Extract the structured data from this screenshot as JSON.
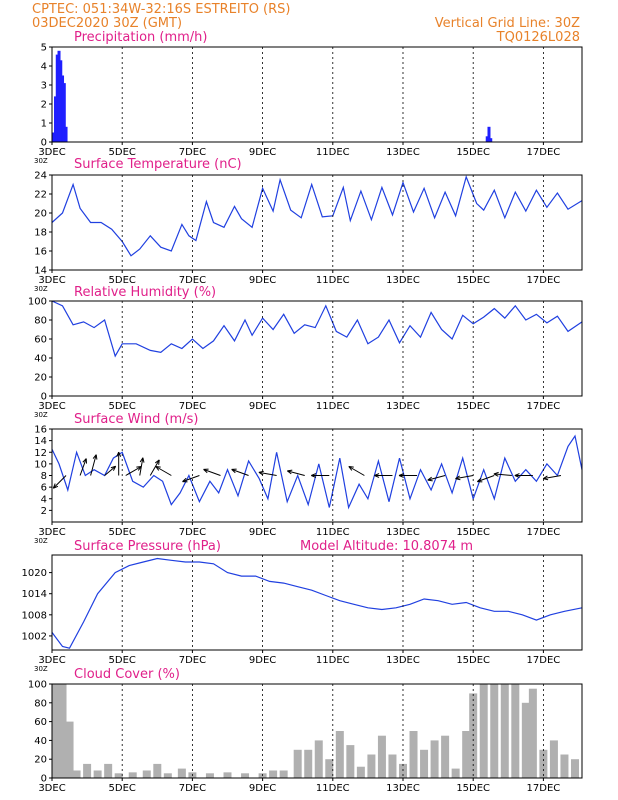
{
  "header": {
    "location": "CPTEC:   051:34W-32:16S   ESTREITO (RS)",
    "run": "03DEC2020 30Z (GMT)",
    "grid_line": "Vertical Grid Line: 30Z",
    "code": "TQ0126L028"
  },
  "chart_data": [
    {
      "type": "bar",
      "title": "Precipitation (mm/h)",
      "x_tick_labels": [
        "3DEC",
        "5DEC",
        "7DEC",
        "9DEC",
        "11DEC",
        "13DEC",
        "15DEC",
        "17DEC"
      ],
      "xlim_days": [
        3,
        18.1
      ],
      "ylim": [
        0,
        5
      ],
      "yticks": [
        0,
        1,
        2,
        3,
        4,
        5
      ],
      "color": "#1f1fff",
      "values": [
        [
          3.05,
          0.5
        ],
        [
          3.1,
          2.4
        ],
        [
          3.15,
          4.6
        ],
        [
          3.2,
          4.8
        ],
        [
          3.25,
          4.3
        ],
        [
          3.3,
          3.5
        ],
        [
          3.35,
          3.1
        ],
        [
          3.4,
          0.8
        ],
        [
          15.4,
          0.3
        ],
        [
          15.45,
          0.8
        ],
        [
          15.5,
          0.2
        ]
      ]
    },
    {
      "type": "line",
      "title": "Surface Temperature (nC)",
      "x_tick_labels": [
        "3DEC",
        "5DEC",
        "7DEC",
        "9DEC",
        "11DEC",
        "13DEC",
        "15DEC",
        "17DEC"
      ],
      "xlim_days": [
        3,
        18.1
      ],
      "ylim": [
        14,
        24
      ],
      "yticks": [
        14,
        16,
        18,
        20,
        22,
        24
      ],
      "color": "#2040e0",
      "x": [
        3,
        3.3,
        3.6,
        3.8,
        4.1,
        4.4,
        4.7,
        5,
        5.25,
        5.5,
        5.8,
        6.1,
        6.4,
        6.7,
        6.9,
        7.1,
        7.4,
        7.6,
        7.9,
        8.2,
        8.4,
        8.7,
        9,
        9.3,
        9.5,
        9.8,
        10.1,
        10.4,
        10.7,
        11,
        11.3,
        11.5,
        11.8,
        12.1,
        12.4,
        12.7,
        13,
        13.3,
        13.6,
        13.9,
        14.2,
        14.5,
        14.8,
        15.1,
        15.3,
        15.6,
        15.9,
        16.2,
        16.5,
        16.8,
        17.1,
        17.4,
        17.7,
        18.1
      ],
      "values": [
        19,
        20,
        23,
        20.5,
        19,
        19,
        18.3,
        17,
        15.5,
        16.2,
        17.6,
        16.4,
        16,
        18.8,
        17.6,
        17.1,
        21.2,
        19,
        18.5,
        20.7,
        19.4,
        18.5,
        22.6,
        20.2,
        23.5,
        20.3,
        19.5,
        23,
        19.6,
        19.7,
        22.7,
        19.2,
        22.3,
        19.3,
        22.7,
        19.8,
        23.2,
        20.1,
        22.6,
        19.5,
        22.2,
        19.7,
        23.8,
        21,
        20.3,
        22.4,
        19.5,
        22.2,
        20.2,
        22.4,
        20.6,
        22.1,
        20.4,
        21.3
      ]
    },
    {
      "type": "line",
      "title": "Relative Humidity (%)",
      "x_tick_labels": [
        "3DEC",
        "5DEC",
        "7DEC",
        "9DEC",
        "11DEC",
        "13DEC",
        "15DEC",
        "17DEC"
      ],
      "xlim_days": [
        3,
        18.1
      ],
      "ylim": [
        0,
        100
      ],
      "yticks": [
        0,
        20,
        40,
        60,
        80,
        100
      ],
      "color": "#2040e0",
      "x": [
        3,
        3.3,
        3.6,
        3.9,
        4.2,
        4.5,
        4.8,
        5,
        5.4,
        5.8,
        6.1,
        6.4,
        6.7,
        7,
        7.3,
        7.6,
        7.9,
        8.2,
        8.5,
        8.7,
        9,
        9.3,
        9.6,
        9.9,
        10.2,
        10.5,
        10.8,
        11.1,
        11.4,
        11.7,
        12,
        12.3,
        12.6,
        12.9,
        13.2,
        13.5,
        13.8,
        14.1,
        14.4,
        14.7,
        15,
        15.3,
        15.6,
        15.9,
        16.2,
        16.5,
        16.8,
        17.1,
        17.4,
        17.7,
        18.1
      ],
      "values": [
        100,
        95,
        75,
        78,
        72,
        80,
        42,
        55,
        55,
        48,
        46,
        55,
        50,
        60,
        50,
        58,
        74,
        58,
        80,
        64,
        82,
        70,
        86,
        66,
        75,
        72,
        95,
        68,
        62,
        80,
        55,
        62,
        80,
        56,
        74,
        62,
        88,
        70,
        60,
        85,
        76,
        83,
        92,
        82,
        95,
        80,
        86,
        77,
        84,
        68,
        78
      ]
    },
    {
      "type": "line",
      "title": "Surface Wind (m/s)",
      "x_tick_labels": [
        "3DEC",
        "5DEC",
        "7DEC",
        "9DEC",
        "11DEC",
        "13DEC",
        "15DEC",
        "17DEC"
      ],
      "xlim_days": [
        3,
        18.1
      ],
      "ylim": [
        0,
        16
      ],
      "yticks": [
        2,
        4,
        6,
        8,
        10,
        12,
        14,
        16
      ],
      "color": "#2040e0",
      "x": [
        3,
        3.2,
        3.45,
        3.7,
        3.95,
        4.2,
        4.5,
        4.75,
        5,
        5.3,
        5.6,
        5.9,
        6.15,
        6.4,
        6.65,
        6.9,
        7.2,
        7.5,
        7.75,
        8,
        8.3,
        8.6,
        8.9,
        9.15,
        9.4,
        9.7,
        10,
        10.3,
        10.6,
        10.9,
        11.2,
        11.45,
        11.75,
        12,
        12.3,
        12.6,
        12.9,
        13.2,
        13.5,
        13.8,
        14.1,
        14.4,
        14.7,
        15,
        15.3,
        15.6,
        15.9,
        16.2,
        16.5,
        16.8,
        17.1,
        17.4,
        17.7,
        17.9,
        18.1
      ],
      "values": [
        12.5,
        10,
        5.5,
        12,
        8,
        9,
        8,
        11,
        12,
        7,
        6,
        8,
        7,
        3,
        5,
        8,
        3.5,
        7,
        5,
        9,
        4.5,
        10.5,
        7.5,
        4,
        12,
        3.5,
        8,
        3,
        10,
        2.5,
        11,
        2.5,
        6.5,
        4,
        10.5,
        3.5,
        11,
        4,
        9,
        5.5,
        10,
        5,
        11,
        4,
        9,
        4,
        11,
        7,
        9,
        7,
        10,
        8,
        13,
        14.8,
        9
      ]
    },
    {
      "type": "line",
      "title": "Surface Pressure (hPa)",
      "annotation": "Model Altitude: 10.8074 m",
      "x_tick_labels": [
        "3DEC",
        "5DEC",
        "7DEC",
        "9DEC",
        "11DEC",
        "13DEC",
        "15DEC",
        "17DEC"
      ],
      "xlim_days": [
        3,
        18.1
      ],
      "ylim": [
        998,
        1025
      ],
      "yticks": [
        1002,
        1008,
        1014,
        1020
      ],
      "color": "#2040e0",
      "x": [
        3,
        3.3,
        3.5,
        3.9,
        4.3,
        4.8,
        5.2,
        5.6,
        6,
        6.4,
        6.8,
        7.2,
        7.6,
        8,
        8.4,
        8.8,
        9.2,
        9.6,
        10,
        10.4,
        10.8,
        11.2,
        11.6,
        12,
        12.4,
        12.8,
        13.2,
        13.6,
        14,
        14.4,
        14.8,
        15.2,
        15.6,
        16,
        16.4,
        16.8,
        17.2,
        17.6,
        18.1
      ],
      "values": [
        1003,
        999,
        998.5,
        1006,
        1014,
        1020,
        1022,
        1023,
        1024,
        1023.5,
        1023,
        1023,
        1022.5,
        1020,
        1019,
        1019,
        1017.5,
        1017,
        1016,
        1015,
        1013.5,
        1012,
        1011,
        1010,
        1009.5,
        1010,
        1011,
        1012.5,
        1012,
        1011,
        1011.5,
        1010,
        1009,
        1009,
        1008,
        1006.5,
        1008,
        1009,
        1010
      ]
    },
    {
      "type": "bar",
      "title": "Cloud Cover (%)",
      "x_tick_labels": [
        "3DEC",
        "5DEC",
        "7DEC",
        "9DEC",
        "11DEC",
        "13DEC",
        "15DEC",
        "17DEC"
      ],
      "xlim_days": [
        3,
        18.1
      ],
      "ylim": [
        0,
        100
      ],
      "yticks": [
        0,
        20,
        40,
        60,
        80,
        100
      ],
      "color": "#b0b0b0",
      "values": [
        [
          3.1,
          100
        ],
        [
          3.3,
          100
        ],
        [
          3.5,
          60
        ],
        [
          3.7,
          8
        ],
        [
          4,
          15
        ],
        [
          4.3,
          8
        ],
        [
          4.6,
          15
        ],
        [
          4.9,
          5
        ],
        [
          5.3,
          6
        ],
        [
          5.7,
          8
        ],
        [
          6,
          15
        ],
        [
          6.3,
          5
        ],
        [
          6.7,
          10
        ],
        [
          7,
          6
        ],
        [
          7.5,
          5
        ],
        [
          8,
          6
        ],
        [
          8.5,
          5
        ],
        [
          9,
          5
        ],
        [
          9.3,
          8
        ],
        [
          9.6,
          8
        ],
        [
          10,
          30
        ],
        [
          10.3,
          30
        ],
        [
          10.6,
          40
        ],
        [
          10.9,
          20
        ],
        [
          11.2,
          50
        ],
        [
          11.5,
          35
        ],
        [
          11.8,
          12
        ],
        [
          12.1,
          25
        ],
        [
          12.4,
          45
        ],
        [
          12.7,
          25
        ],
        [
          13,
          15
        ],
        [
          13.3,
          50
        ],
        [
          13.6,
          30
        ],
        [
          13.9,
          40
        ],
        [
          14.2,
          45
        ],
        [
          14.5,
          10
        ],
        [
          14.8,
          50
        ],
        [
          15,
          90
        ],
        [
          15.3,
          100
        ],
        [
          15.6,
          100
        ],
        [
          15.9,
          100
        ],
        [
          16.2,
          100
        ],
        [
          16.5,
          80
        ],
        [
          16.7,
          95
        ],
        [
          17,
          30
        ],
        [
          17.3,
          40
        ],
        [
          17.6,
          25
        ],
        [
          17.9,
          20
        ]
      ]
    }
  ],
  "wind_barbs": [
    {
      "x": 3.4,
      "dir_deg": 225,
      "len": 1.0
    },
    {
      "x": 3.8,
      "dir_deg": 70,
      "len": 1.0
    },
    {
      "x": 4.1,
      "dir_deg": 75,
      "len": 1.2
    },
    {
      "x": 4.5,
      "dir_deg": 40,
      "len": 0.8
    },
    {
      "x": 4.9,
      "dir_deg": 90,
      "len": 1.3
    },
    {
      "x": 5.1,
      "dir_deg": 30,
      "len": 1.0
    },
    {
      "x": 5.5,
      "dir_deg": 80,
      "len": 1.0
    },
    {
      "x": 5.8,
      "dir_deg": 60,
      "len": 1.0
    },
    {
      "x": 6.4,
      "dir_deg": 150,
      "len": 1.0
    },
    {
      "x": 7.2,
      "dir_deg": 200,
      "len": 1.0
    },
    {
      "x": 7.8,
      "dir_deg": 160,
      "len": 1.0
    },
    {
      "x": 8.6,
      "dir_deg": 160,
      "len": 1.0
    },
    {
      "x": 9.4,
      "dir_deg": 170,
      "len": 1.0
    },
    {
      "x": 10.2,
      "dir_deg": 165,
      "len": 1.0
    },
    {
      "x": 10.9,
      "dir_deg": 180,
      "len": 1.0
    },
    {
      "x": 11.9,
      "dir_deg": 150,
      "len": 1.0
    },
    {
      "x": 12.7,
      "dir_deg": 180,
      "len": 1.0
    },
    {
      "x": 13.4,
      "dir_deg": 180,
      "len": 1.0
    },
    {
      "x": 14.2,
      "dir_deg": 195,
      "len": 1.0
    },
    {
      "x": 15,
      "dir_deg": 190,
      "len": 1.0
    },
    {
      "x": 15.6,
      "dir_deg": 200,
      "len": 1.0
    },
    {
      "x": 16.1,
      "dir_deg": 175,
      "len": 1.0
    },
    {
      "x": 16.7,
      "dir_deg": 180,
      "len": 1.0
    },
    {
      "x": 17.5,
      "dir_deg": 190,
      "len": 1.0
    }
  ],
  "clip_text": "30Z"
}
